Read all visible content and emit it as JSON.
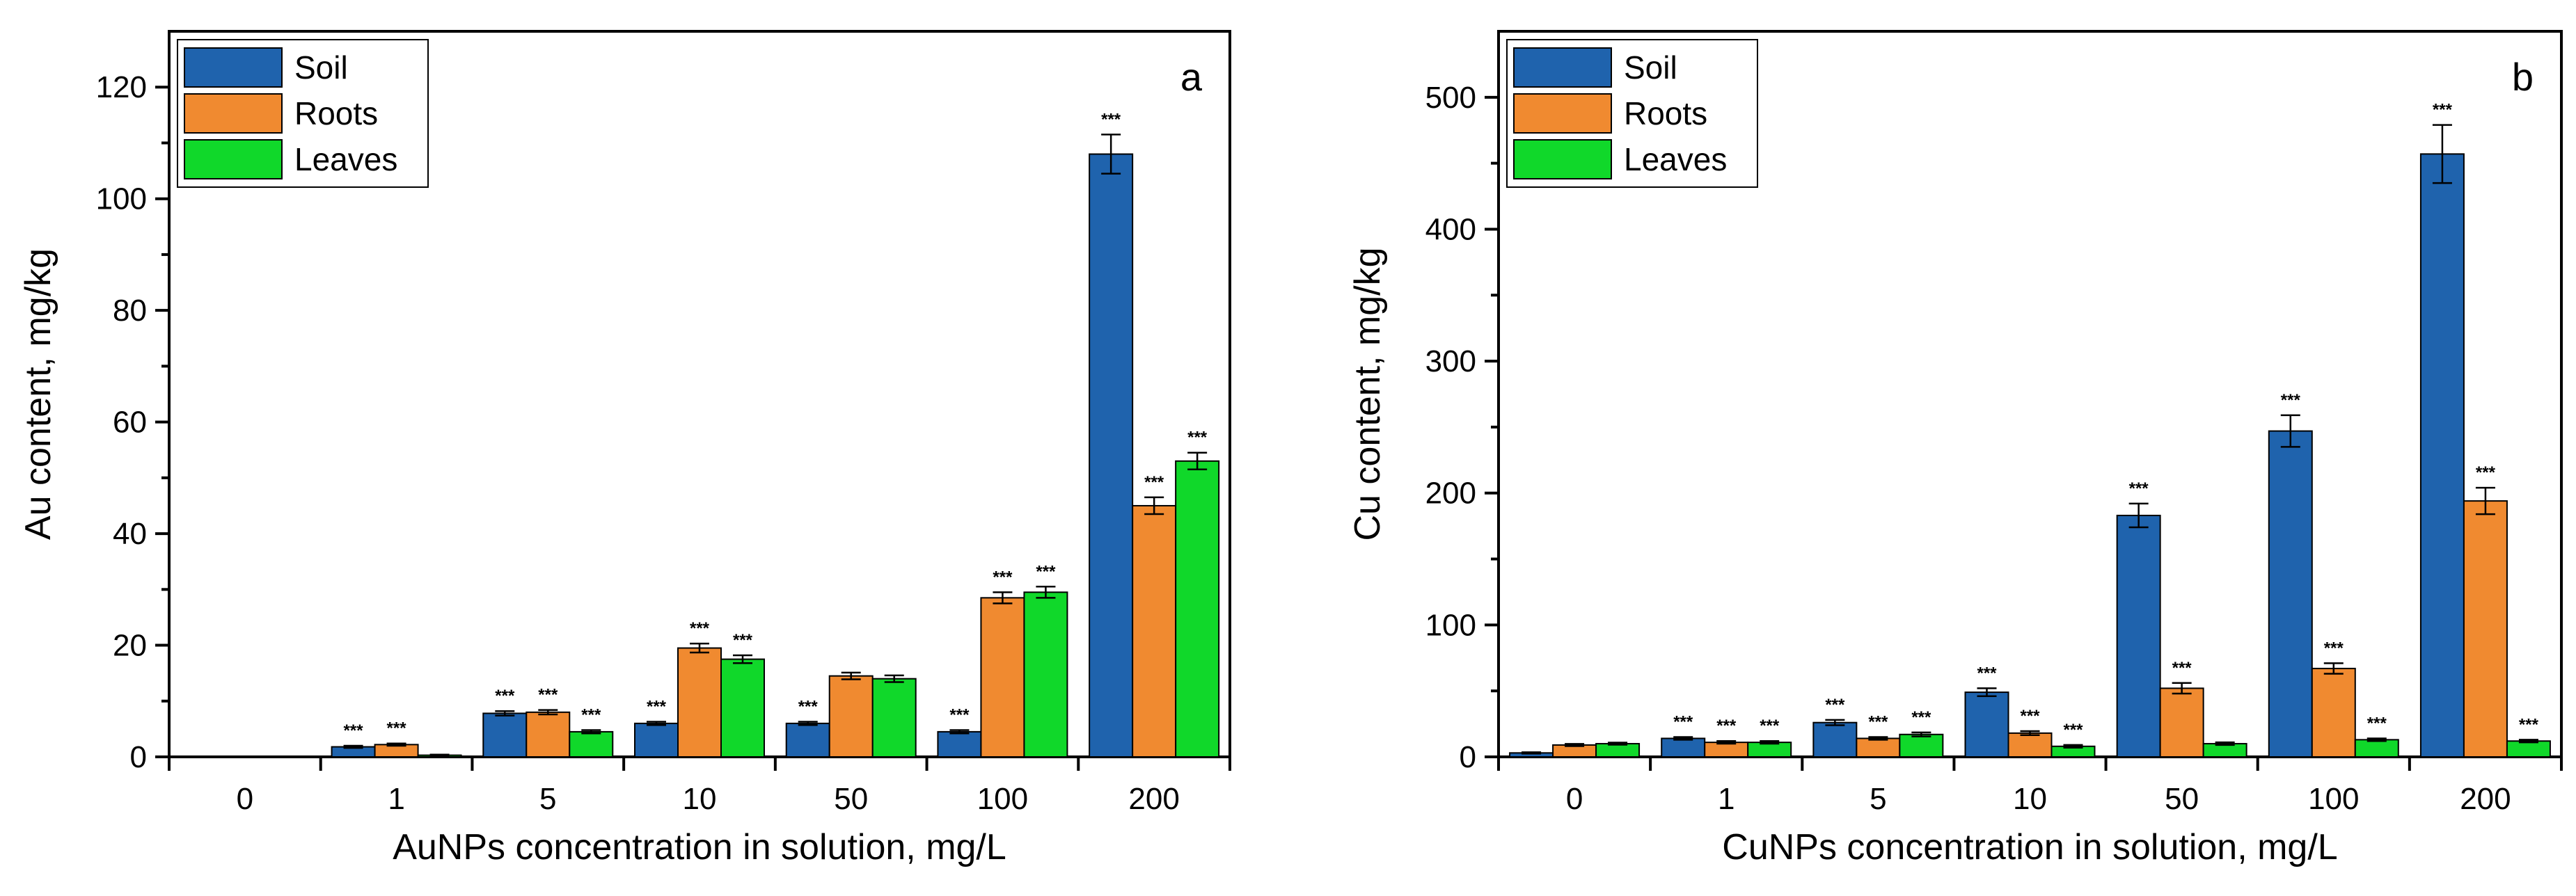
{
  "colors": {
    "soil": "#1f63ad",
    "roots": "#f08a30",
    "leaves": "#10d82a"
  },
  "chart_data": [
    {
      "type": "bar",
      "panel_letter": "a",
      "xlabel": "AuNPs concentration in solution, mg/L",
      "ylabel": "Au content, mg/kg",
      "ylim": [
        0,
        130
      ],
      "yticks": [
        0,
        20,
        40,
        60,
        80,
        100,
        120
      ],
      "legend_position": "top-left",
      "categories": [
        "0",
        "1",
        "5",
        "10",
        "50",
        "100",
        "200"
      ],
      "series": [
        {
          "name": "Soil",
          "color_key": "soil",
          "values": [
            0,
            1.8,
            7.8,
            6.0,
            6.0,
            4.5,
            108
          ],
          "errors": [
            0,
            0.2,
            0.4,
            0.3,
            0.3,
            0.3,
            3.5
          ],
          "significance": [
            "",
            "***",
            "***",
            "***",
            "***",
            "***",
            "***"
          ]
        },
        {
          "name": "Roots",
          "color_key": "roots",
          "values": [
            0,
            2.2,
            8.0,
            19.5,
            14.5,
            28.5,
            45
          ],
          "errors": [
            0,
            0.2,
            0.4,
            0.8,
            0.6,
            1.0,
            1.5
          ],
          "significance": [
            "",
            "***",
            "***",
            "***",
            "",
            "***",
            "***"
          ]
        },
        {
          "name": "Leaves",
          "color_key": "leaves",
          "values": [
            0,
            0.3,
            4.5,
            17.5,
            14.0,
            29.5,
            53
          ],
          "errors": [
            0,
            0.1,
            0.3,
            0.7,
            0.6,
            1.0,
            1.5
          ],
          "significance": [
            "",
            "",
            "***",
            "***",
            "",
            "***",
            "***"
          ]
        }
      ]
    },
    {
      "type": "bar",
      "panel_letter": "b",
      "xlabel": "CuNPs concentration in solution, mg/L",
      "ylabel": "Cu content, mg/kg",
      "ylim": [
        0,
        550
      ],
      "yticks": [
        0,
        100,
        200,
        300,
        400,
        500
      ],
      "legend_position": "top-left",
      "categories": [
        "0",
        "1",
        "5",
        "10",
        "50",
        "100",
        "200"
      ],
      "series": [
        {
          "name": "Soil",
          "color_key": "soil",
          "values": [
            3,
            14,
            26,
            49,
            183,
            247,
            457
          ],
          "errors": [
            0.5,
            1,
            2,
            3,
            9,
            12,
            22
          ],
          "significance": [
            "",
            "***",
            "***",
            "***",
            "***",
            "***",
            "***"
          ]
        },
        {
          "name": "Roots",
          "color_key": "roots",
          "values": [
            9,
            11,
            14,
            18,
            52,
            67,
            194
          ],
          "errors": [
            0.8,
            1,
            1,
            1.5,
            4,
            4,
            10
          ],
          "significance": [
            "",
            "***",
            "***",
            "***",
            "***",
            "***",
            "***"
          ]
        },
        {
          "name": "Leaves",
          "color_key": "leaves",
          "values": [
            10,
            11,
            17,
            8,
            10,
            13,
            12
          ],
          "errors": [
            0.8,
            1,
            1.5,
            1,
            1,
            1,
            1
          ],
          "significance": [
            "",
            "***",
            "***",
            "***",
            "",
            "***",
            "***"
          ]
        }
      ]
    }
  ]
}
